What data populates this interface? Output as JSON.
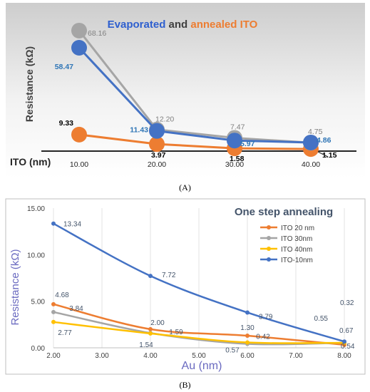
{
  "captions": {
    "a": "(A)",
    "b": "(B)"
  },
  "chart_data": [
    {
      "type": "line",
      "title": [
        {
          "text": "Evaporated",
          "color": "#2e5fcf"
        },
        {
          "text": " and ",
          "color": "#404040"
        },
        {
          "text": "annealed ITO",
          "color": "#ed7d31"
        }
      ],
      "ylabel": "Resistance (kΩ)",
      "xlabel": "ITO (nm)",
      "categories": [
        "10.00",
        "20.00",
        "30.00",
        "40.00"
      ],
      "ylim": [
        0,
        75
      ],
      "series": [
        {
          "color": "#4472c4",
          "label_color": "#2e75b6",
          "values": [
            58.47,
            11.43,
            5.97,
            4.86
          ],
          "labels": [
            "58.47",
            "11.43",
            "5.97",
            "4.86"
          ]
        },
        {
          "color": "#a5a5a5",
          "label_color": "#7f7f7f",
          "values": [
            68.16,
            12.2,
            7.47,
            4.75
          ],
          "labels": [
            "68.16",
            "12.20",
            "7.47",
            "4.75"
          ]
        },
        {
          "color": "#ed7d31",
          "label_color": "#000000",
          "values": [
            9.33,
            3.97,
            1.58,
            1.15
          ],
          "labels": [
            "9.33",
            "3.97",
            "1.58",
            "1.15"
          ]
        }
      ],
      "background": "gradient-gray"
    },
    {
      "type": "line",
      "title": "One step annealing",
      "ylabel": "Resistance (kΩ)",
      "xlabel": "Au (nm)",
      "xlim": [
        2,
        8
      ],
      "ylim": [
        0,
        15
      ],
      "xticks": [
        "2.00",
        "3.00",
        "4.00",
        "5.00",
        "6.00",
        "7.00",
        "8.00"
      ],
      "yticks": [
        "0.00",
        "5.00",
        "10.00",
        "15.00"
      ],
      "legend_position": "top-right",
      "series": [
        {
          "name": "ITO 20 nm",
          "color": "#ed7d31",
          "points": [
            [
              2,
              4.68
            ],
            [
              4,
              2.0
            ],
            [
              6,
              1.3
            ],
            [
              8,
              0.32
            ]
          ],
          "labels": [
            {
              "x": 2,
              "text": "4.68"
            },
            {
              "x": 4,
              "text": "2.00"
            },
            {
              "x": 6,
              "text": "1.30"
            },
            {
              "x": 8,
              "text": "0.32"
            }
          ]
        },
        {
          "name": "ITO 30nm",
          "color": "#a5a5a5",
          "points": [
            [
              2,
              3.84
            ],
            [
              4,
              1.59
            ],
            [
              6,
              0.42
            ],
            [
              8,
              0.55
            ]
          ],
          "labels": [
            {
              "x": 2,
              "text": "3.84"
            },
            {
              "x": 4,
              "text": "1.59"
            },
            {
              "x": 6,
              "text": "0.42"
            },
            {
              "x": 8,
              "text": "0.55"
            }
          ]
        },
        {
          "name": "ITO 40nm",
          "color": "#ffc000",
          "points": [
            [
              2,
              2.77
            ],
            [
              4,
              1.54
            ],
            [
              6,
              0.57
            ],
            [
              8,
              0.54
            ]
          ],
          "labels": [
            {
              "x": 2,
              "text": "2.77"
            },
            {
              "x": 4,
              "text": "1.54"
            },
            {
              "x": 6,
              "text": "0.57"
            },
            {
              "x": 8,
              "text": "0.54"
            }
          ]
        },
        {
          "name": "ITO-10nm",
          "color": "#4472c4",
          "points": [
            [
              2,
              13.34
            ],
            [
              4,
              7.72
            ],
            [
              6,
              3.79
            ],
            [
              8,
              0.67
            ]
          ],
          "labels": [
            {
              "x": 2,
              "text": "13.34"
            },
            {
              "x": 4,
              "text": "7.72"
            },
            {
              "x": 6,
              "text": "3.79"
            },
            {
              "x": 8,
              "text": "0.67"
            }
          ]
        }
      ]
    }
  ]
}
